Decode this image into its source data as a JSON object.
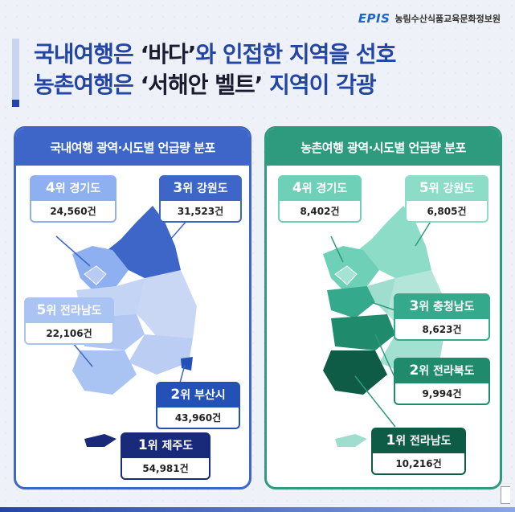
{
  "header": {
    "logo_mark": "EPIS",
    "org_name": "농림수산식품교육문화정보원",
    "headline_line1_a": "국내여행은 ",
    "headline_line1_hl": "‘바다’",
    "headline_line1_b": "와 인접한 지역을 선호",
    "headline_line2_a": "농촌여행은 ",
    "headline_line2_hl": "‘서해안 벨트’",
    "headline_line2_b": " 지역이 각광"
  },
  "left_panel": {
    "title": "국내여행 광역·시도별 언급량 분포",
    "accent": "#3d66c8",
    "tags": [
      {
        "num": "4",
        "rank": "위 경기도",
        "value": "24,560건",
        "color": "#8eb0f0"
      },
      {
        "num": "3",
        "rank": "위 강원도",
        "value": "31,523건",
        "color": "#3d66c8"
      },
      {
        "num": "5",
        "rank": "위 전라남도",
        "value": "22,106건",
        "color": "#a9c3f2"
      },
      {
        "num": "2",
        "rank": "위 부산시",
        "value": "43,960건",
        "color": "#2451b8"
      },
      {
        "num": "1",
        "rank": "위 제주도",
        "value": "54,981건",
        "color": "#1a2a7a"
      }
    ]
  },
  "right_panel": {
    "title": "농촌여행 광역·시도별 언급량 분포",
    "accent": "#2e9a7e",
    "tags": [
      {
        "num": "4",
        "rank": "위 경기도",
        "value": "8,402건",
        "color": "#6fd0b8"
      },
      {
        "num": "5",
        "rank": "위 강원도",
        "value": "6,805건",
        "color": "#8cdcc8"
      },
      {
        "num": "3",
        "rank": "위 충청남도",
        "value": "8,623건",
        "color": "#35a98b"
      },
      {
        "num": "2",
        "rank": "위 전라북도",
        "value": "9,994건",
        "color": "#1f8a6c"
      },
      {
        "num": "1",
        "rank": "위 전라남도",
        "value": "10,216건",
        "color": "#0f5c46"
      }
    ]
  }
}
